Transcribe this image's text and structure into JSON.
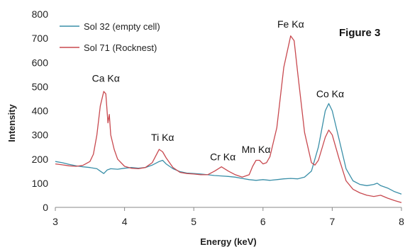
{
  "chart_data": {
    "type": "line",
    "title": "",
    "annotation_title": "Figure 3",
    "xlabel": "Energy (keV)",
    "ylabel": "Intensity",
    "xlim": [
      3,
      8
    ],
    "ylim": [
      0,
      800
    ],
    "x_ticks": [
      3,
      4,
      5,
      6,
      7,
      8
    ],
    "y_ticks": [
      0,
      100,
      200,
      300,
      400,
      500,
      600,
      700,
      800
    ],
    "grid": false,
    "legend_position": "top-left",
    "series": [
      {
        "name": "Sol 32 (empty cell)",
        "color": "#3a8fa8",
        "points": [
          [
            3.0,
            190
          ],
          [
            3.1,
            185
          ],
          [
            3.2,
            178
          ],
          [
            3.3,
            172
          ],
          [
            3.4,
            168
          ],
          [
            3.5,
            165
          ],
          [
            3.6,
            160
          ],
          [
            3.65,
            150
          ],
          [
            3.7,
            140
          ],
          [
            3.75,
            155
          ],
          [
            3.8,
            160
          ],
          [
            3.9,
            158
          ],
          [
            4.0,
            162
          ],
          [
            4.1,
            165
          ],
          [
            4.2,
            162
          ],
          [
            4.3,
            165
          ],
          [
            4.4,
            175
          ],
          [
            4.5,
            190
          ],
          [
            4.55,
            195
          ],
          [
            4.6,
            180
          ],
          [
            4.7,
            160
          ],
          [
            4.8,
            148
          ],
          [
            4.9,
            142
          ],
          [
            5.0,
            140
          ],
          [
            5.1,
            138
          ],
          [
            5.2,
            135
          ],
          [
            5.3,
            132
          ],
          [
            5.4,
            130
          ],
          [
            5.5,
            128
          ],
          [
            5.6,
            125
          ],
          [
            5.7,
            120
          ],
          [
            5.8,
            115
          ],
          [
            5.9,
            112
          ],
          [
            6.0,
            115
          ],
          [
            6.1,
            112
          ],
          [
            6.2,
            115
          ],
          [
            6.3,
            118
          ],
          [
            6.4,
            120
          ],
          [
            6.5,
            118
          ],
          [
            6.6,
            125
          ],
          [
            6.7,
            150
          ],
          [
            6.8,
            250
          ],
          [
            6.9,
            400
          ],
          [
            6.95,
            430
          ],
          [
            7.0,
            400
          ],
          [
            7.1,
            280
          ],
          [
            7.2,
            160
          ],
          [
            7.3,
            110
          ],
          [
            7.4,
            95
          ],
          [
            7.5,
            90
          ],
          [
            7.6,
            95
          ],
          [
            7.65,
            100
          ],
          [
            7.7,
            90
          ],
          [
            7.8,
            80
          ],
          [
            7.9,
            65
          ],
          [
            8.0,
            55
          ]
        ]
      },
      {
        "name": "Sol 71 (Rocknest)",
        "color": "#c8494f",
        "points": [
          [
            3.0,
            180
          ],
          [
            3.1,
            176
          ],
          [
            3.2,
            172
          ],
          [
            3.3,
            170
          ],
          [
            3.4,
            174
          ],
          [
            3.5,
            190
          ],
          [
            3.55,
            220
          ],
          [
            3.6,
            300
          ],
          [
            3.65,
            420
          ],
          [
            3.7,
            480
          ],
          [
            3.73,
            470
          ],
          [
            3.76,
            350
          ],
          [
            3.78,
            385
          ],
          [
            3.8,
            300
          ],
          [
            3.85,
            240
          ],
          [
            3.9,
            200
          ],
          [
            4.0,
            170
          ],
          [
            4.1,
            162
          ],
          [
            4.2,
            160
          ],
          [
            4.3,
            165
          ],
          [
            4.4,
            185
          ],
          [
            4.5,
            240
          ],
          [
            4.55,
            230
          ],
          [
            4.6,
            205
          ],
          [
            4.7,
            165
          ],
          [
            4.8,
            145
          ],
          [
            4.9,
            140
          ],
          [
            5.0,
            138
          ],
          [
            5.1,
            135
          ],
          [
            5.2,
            135
          ],
          [
            5.3,
            150
          ],
          [
            5.4,
            168
          ],
          [
            5.5,
            150
          ],
          [
            5.6,
            135
          ],
          [
            5.7,
            125
          ],
          [
            5.8,
            135
          ],
          [
            5.85,
            170
          ],
          [
            5.9,
            195
          ],
          [
            5.95,
            195
          ],
          [
            6.0,
            180
          ],
          [
            6.05,
            185
          ],
          [
            6.1,
            210
          ],
          [
            6.2,
            330
          ],
          [
            6.3,
            580
          ],
          [
            6.4,
            710
          ],
          [
            6.45,
            690
          ],
          [
            6.5,
            560
          ],
          [
            6.6,
            310
          ],
          [
            6.7,
            185
          ],
          [
            6.75,
            175
          ],
          [
            6.8,
            195
          ],
          [
            6.9,
            290
          ],
          [
            6.95,
            320
          ],
          [
            7.0,
            300
          ],
          [
            7.1,
            200
          ],
          [
            7.2,
            110
          ],
          [
            7.3,
            75
          ],
          [
            7.4,
            60
          ],
          [
            7.5,
            50
          ],
          [
            7.6,
            45
          ],
          [
            7.7,
            50
          ],
          [
            7.8,
            38
          ],
          [
            7.9,
            28
          ],
          [
            8.0,
            20
          ]
        ]
      }
    ],
    "annotations": [
      {
        "text": "Ca Kα",
        "x": 3.73,
        "y": 520
      },
      {
        "text": "Ti Kα",
        "x": 4.55,
        "y": 275
      },
      {
        "text": "Cr Kα",
        "x": 5.42,
        "y": 195
      },
      {
        "text": "Mn Kα",
        "x": 5.9,
        "y": 225
      },
      {
        "text": "Fe Kα",
        "x": 6.4,
        "y": 745
      },
      {
        "text": "Co Kα",
        "x": 6.97,
        "y": 455
      }
    ]
  }
}
